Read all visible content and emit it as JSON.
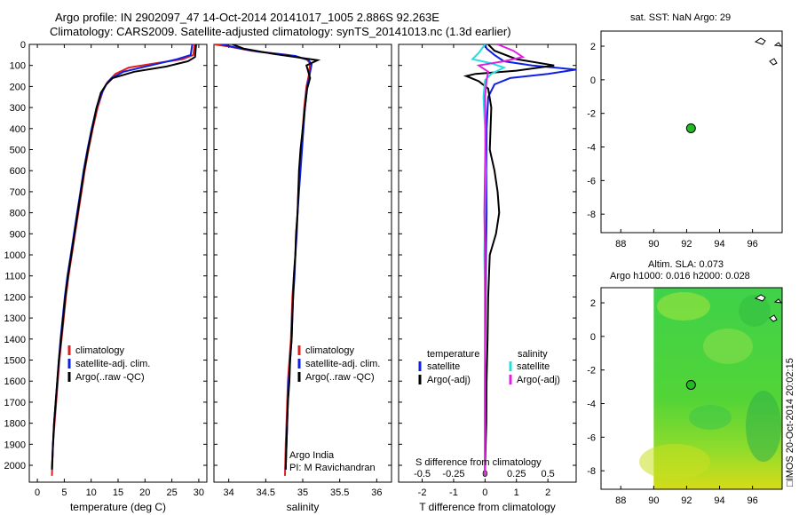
{
  "page": {
    "title_line1": "Argo profile: IN 2902097_47 14-Oct-2014 20141017_1005 2.886S 92.263E",
    "title_line2": "Climatology: CARS2009. Satellite-adjusted climatology: synTS_20141013.nc (1.3d earlier)",
    "sst_title": "sat. SST: NaN Argo: 29",
    "sla_title1": "Altim. SLA: 0.073",
    "sla_title2": "Argo h1000: 0.016 h2000: 0.028",
    "credit": "□IMOS 20-Oct-2014 20:02:15",
    "argo_india": "Argo India",
    "pi": "PI: M Ravichandran",
    "s_diff_label": "S difference from climatology"
  },
  "colors": {
    "climatology": "#e02020",
    "satellite": "#1020e0",
    "argo": "#000000",
    "sat_salinity": "#20e0e0",
    "argo_salinity": "#e020e0",
    "position": "#22bb22"
  },
  "chart_data": [
    {
      "id": "temperature",
      "type": "line",
      "xlabel": "temperature (deg C)",
      "ylim": [
        2080,
        0
      ],
      "xlim": [
        -1.5,
        31.5
      ],
      "yticks": [
        0,
        100,
        200,
        300,
        400,
        500,
        600,
        700,
        800,
        900,
        1000,
        1100,
        1200,
        1300,
        1400,
        1500,
        1600,
        1700,
        1800,
        1900,
        2000
      ],
      "xticks": [
        0,
        5,
        10,
        15,
        20,
        25,
        30
      ],
      "legend": [
        "climatology",
        "satellite-adj. clim.",
        "Argo(..raw -QC)"
      ],
      "series": [
        {
          "name": "climatology",
          "color_key": "climatology",
          "x": [
            29.2,
            29,
            27,
            22,
            17,
            14.5,
            13,
            12.2,
            11.2,
            10.3,
            9.5,
            8.8,
            8.2,
            7.6,
            7,
            6.4,
            5.8,
            5.3,
            4.9,
            4.5,
            4.1,
            3.8,
            3.5,
            3.2,
            2.9,
            2.7
          ],
          "y": [
            0,
            50,
            70,
            90,
            110,
            140,
            180,
            220,
            300,
            400,
            500,
            600,
            700,
            800,
            900,
            1000,
            1100,
            1200,
            1300,
            1400,
            1500,
            1600,
            1700,
            1800,
            1900,
            2050
          ]
        },
        {
          "name": "satellite-adj. clim.",
          "color_key": "satellite",
          "x": [
            28.8,
            28.5,
            26,
            21,
            16,
            13.8,
            12.8,
            12,
            11,
            10.1,
            9.3,
            8.6,
            8,
            7.4,
            6.8,
            6.2,
            5.6,
            5.1,
            4.7,
            4.3,
            4,
            3.7,
            3.4,
            3.1,
            2.9,
            2.7
          ],
          "y": [
            0,
            50,
            70,
            100,
            130,
            160,
            190,
            230,
            300,
            400,
            500,
            600,
            700,
            800,
            900,
            1000,
            1100,
            1200,
            1300,
            1400,
            1500,
            1600,
            1700,
            1800,
            1900,
            2020
          ]
        },
        {
          "name": "Argo(..raw -QC)",
          "color_key": "argo",
          "x": [
            29.5,
            29.3,
            28,
            24,
            18,
            14,
            12.8,
            11.8,
            11,
            10.2,
            9.4,
            8.7,
            8.1,
            7.5,
            6.9,
            6.3,
            5.7,
            5.2,
            4.8,
            4.4,
            4,
            3.7,
            3.4,
            3.1,
            2.9,
            2.7
          ],
          "y": [
            0,
            60,
            80,
            105,
            130,
            160,
            190,
            230,
            300,
            400,
            500,
            600,
            700,
            800,
            900,
            1000,
            1100,
            1200,
            1300,
            1400,
            1500,
            1600,
            1700,
            1800,
            1900,
            2020
          ]
        }
      ]
    },
    {
      "id": "salinity",
      "type": "line",
      "xlabel": "salinity",
      "ylim": [
        2080,
        0
      ],
      "xlim": [
        33.8,
        36.2
      ],
      "xticks": [
        34,
        34.5,
        35,
        35.5,
        36
      ],
      "xticklabels": [
        "34",
        "34.5",
        "35",
        "35.5",
        "36"
      ],
      "legend": [
        "climatology",
        "satellite-adj. clim.",
        "Argo(..raw -QC)"
      ],
      "series": [
        {
          "name": "climatology",
          "color_key": "climatology",
          "x": [
            33.8,
            34,
            34.3,
            34.8,
            35.05,
            35.1,
            35.08,
            35.05,
            35.02,
            35,
            34.98,
            34.96,
            34.94,
            34.93,
            34.91,
            34.9,
            34.88,
            34.86,
            34.85,
            34.84,
            34.82,
            34.8,
            34.79,
            34.78,
            34.77,
            34.76
          ],
          "y": [
            0,
            10,
            30,
            50,
            70,
            90,
            150,
            200,
            300,
            400,
            500,
            600,
            700,
            800,
            900,
            1000,
            1100,
            1200,
            1300,
            1400,
            1500,
            1600,
            1700,
            1800,
            1900,
            2050
          ]
        },
        {
          "name": "satellite-adj. clim.",
          "color_key": "satellite",
          "x": [
            33.9,
            34.1,
            34.4,
            34.9,
            35.08,
            35.12,
            35.09,
            35.06,
            35.03,
            35.01,
            34.99,
            34.97,
            34.95,
            34.93,
            34.92,
            34.9,
            34.89,
            34.87,
            34.86,
            34.85,
            34.83,
            34.81,
            34.8,
            34.79,
            34.78,
            34.77
          ],
          "y": [
            0,
            15,
            35,
            55,
            75,
            95,
            150,
            200,
            300,
            400,
            500,
            600,
            700,
            800,
            900,
            1000,
            1100,
            1200,
            1300,
            1400,
            1500,
            1600,
            1700,
            1800,
            1900,
            2020
          ]
        },
        {
          "name": "Argo(..raw -QC)",
          "color_key": "argo",
          "x": [
            34.05,
            34.2,
            34.6,
            35.2,
            35.05,
            35.1,
            35.06,
            35.03,
            35,
            34.97,
            34.95,
            34.94,
            34.93,
            34.91,
            34.9,
            34.88,
            34.87,
            34.86,
            34.85,
            34.83,
            34.82,
            34.8,
            34.79,
            34.78,
            34.77
          ],
          "y": [
            0,
            20,
            45,
            75,
            100,
            160,
            210,
            300,
            400,
            500,
            600,
            700,
            800,
            900,
            1000,
            1100,
            1200,
            1300,
            1400,
            1500,
            1600,
            1700,
            1800,
            1900,
            2020
          ]
        }
      ]
    },
    {
      "id": "difference",
      "type": "line",
      "xlabel": "T difference from climatology",
      "ylim": [
        2080,
        0
      ],
      "xlim": [
        -2.75,
        2.9
      ],
      "xticks": [
        -2,
        -1,
        0,
        1,
        2
      ],
      "xticklabels": [
        "-2",
        "-1",
        "0",
        "1",
        "2"
      ],
      "top_ticks": [
        -0.5,
        -0.25,
        0,
        0.25,
        0.5
      ],
      "top_ticklabels": [
        "-0.5",
        "-0.25",
        "0",
        "0.25",
        "0.5"
      ],
      "top_scale": 4,
      "legend_left_title": "temperature",
      "legend_right_title": "salinity",
      "legend_left": [
        "satellite",
        "Argo(-adj)"
      ],
      "legend_right": [
        "satellite",
        "Argo(-adj)"
      ],
      "series": [
        {
          "name": "T satellite",
          "color_key": "satellite",
          "x": [
            0,
            0.05,
            0.3,
            0.6,
            1.5,
            2.9,
            2,
            0.8,
            0.3,
            0.1,
            0.05,
            0.04,
            0.05,
            0.03,
            0.02,
            0.01,
            0,
            0,
            0,
            0,
            0,
            0
          ],
          "y": [
            0,
            20,
            50,
            80,
            100,
            120,
            140,
            160,
            190,
            250,
            400,
            600,
            800,
            1000,
            1200,
            1400,
            1600,
            1700,
            1800,
            1900,
            2000,
            2050
          ]
        },
        {
          "name": "T Argo(-adj)",
          "color_key": "argo",
          "x": [
            0.1,
            0.3,
            1,
            2.2,
            1,
            -0.3,
            -0.6,
            -0.2,
            0.1,
            0.2,
            0.15,
            0.3,
            0.4,
            0.45,
            0.35,
            0.15,
            0.1,
            0.08,
            0.05,
            0.04,
            0.02,
            0
          ],
          "y": [
            0,
            30,
            70,
            100,
            125,
            140,
            150,
            175,
            210,
            300,
            500,
            600,
            700,
            800,
            900,
            1000,
            1200,
            1400,
            1600,
            1800,
            1900,
            2050
          ]
        },
        {
          "name": "S satellite",
          "color_key": "sat_salinity",
          "x": [
            0,
            -0.2,
            -0.4,
            0.2,
            0.6,
            0.2,
            0,
            -0.05,
            0,
            0.02,
            0,
            -0.02,
            0,
            0,
            0,
            0,
            0
          ],
          "y": [
            0,
            40,
            70,
            90,
            110,
            140,
            170,
            250,
            400,
            600,
            800,
            1000,
            1200,
            1400,
            1600,
            1800,
            2050
          ]
        },
        {
          "name": "S Argo(-adj)",
          "color_key": "argo_salinity",
          "x": [
            0.4,
            0.9,
            1.2,
            0.6,
            -0.2,
            0.1,
            0.05,
            0,
            0.02,
            0,
            -0.02,
            0,
            0,
            0,
            0,
            0
          ],
          "y": [
            0,
            30,
            60,
            80,
            100,
            130,
            170,
            250,
            400,
            600,
            800,
            1000,
            1200,
            1400,
            1600,
            2050
          ]
        }
      ]
    },
    {
      "id": "sst_map",
      "type": "scatter",
      "xlim": [
        86.8,
        97.8
      ],
      "ylim": [
        -9.1,
        2.9
      ],
      "xticks": [
        88,
        90,
        92,
        94,
        96
      ],
      "yticks": [
        2,
        0,
        -2,
        -4,
        -6,
        -8
      ],
      "points": [
        {
          "x": 92.263,
          "y": -2.886
        }
      ]
    },
    {
      "id": "sla_map",
      "type": "heatmap",
      "xlim": [
        86.8,
        97.8
      ],
      "ylim": [
        -9.1,
        2.9
      ],
      "xticks": [
        88,
        90,
        92,
        94,
        96
      ],
      "yticks": [
        2,
        0,
        -2,
        -4,
        -6,
        -8
      ],
      "data_xlim": [
        90,
        97.8
      ],
      "points": [
        {
          "x": 92.263,
          "y": -2.886
        }
      ]
    }
  ]
}
